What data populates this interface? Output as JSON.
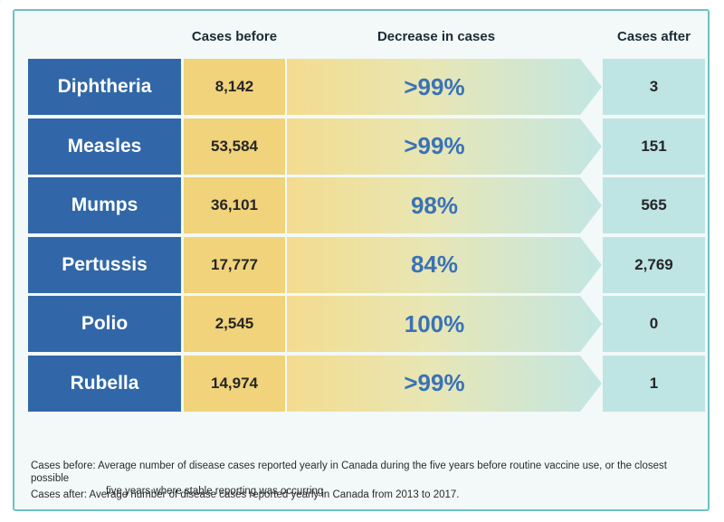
{
  "headers": {
    "cases_before": "Cases before",
    "decrease": "Decrease in cases",
    "cases_after": "Cases after"
  },
  "chart_data": {
    "type": "table",
    "columns": [
      "",
      "Cases before",
      "Decrease in cases",
      "Cases after"
    ],
    "rows": [
      {
        "disease": "Diphtheria",
        "cases_before": "8,142",
        "decrease": ">99%",
        "cases_after": "3"
      },
      {
        "disease": "Measles",
        "cases_before": "53,584",
        "decrease": ">99%",
        "cases_after": "151"
      },
      {
        "disease": "Mumps",
        "cases_before": "36,101",
        "decrease": "98%",
        "cases_after": "565"
      },
      {
        "disease": "Pertussis",
        "cases_before": "17,777",
        "decrease": "84%",
        "cases_after": "2,769"
      },
      {
        "disease": "Polio",
        "cases_before": "2,545",
        "decrease": "100%",
        "cases_after": "0"
      },
      {
        "disease": "Rubella",
        "cases_before": "14,974",
        "decrease": ">99%",
        "cases_after": "1"
      }
    ]
  },
  "footnotes": {
    "before_line1": "Cases before: Average number of disease cases reported yearly in Canada during the five years before routine vaccine use, or the closest possible",
    "before_line2": "five years where stable reporting was occurring.",
    "after": "Cases after: Average number of disease cases reported yearly in Canada from 2013 to 2017."
  },
  "colors": {
    "disease_cell": "#3167a8",
    "before_cell": "#f0d37a",
    "after_cell": "#bfe4e4",
    "decrease_text": "#3a72b6",
    "frame": "#6cc3c1"
  }
}
